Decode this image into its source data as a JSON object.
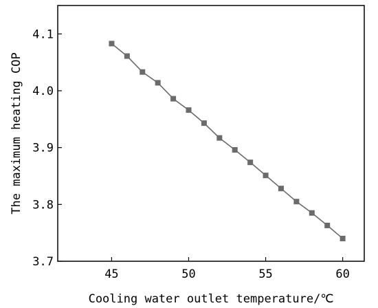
{
  "chart_data": {
    "type": "line",
    "title": "",
    "xlabel": "Cooling water outlet temperature/℃",
    "ylabel": "The maximum heating COP",
    "xlim": [
      41.5,
      61.4
    ],
    "ylim": [
      3.7,
      4.15
    ],
    "xticks": [
      45,
      50,
      55,
      60
    ],
    "yticks": [
      3.7,
      3.8,
      3.9,
      4.0,
      4.1
    ],
    "xtick_labels": [
      "45",
      "50",
      "55",
      "60"
    ],
    "ytick_labels": [
      "3.7",
      "3.8",
      "3.9",
      "4.0",
      "4.1"
    ],
    "grid": false,
    "legend": false,
    "colors": {
      "series": "#6b6b6b",
      "axes": "#000000"
    },
    "series": [
      {
        "marker": "square",
        "x": [
          45,
          46,
          47,
          48,
          49,
          50,
          51,
          52,
          53,
          54,
          55,
          56,
          57,
          58,
          59,
          60
        ],
        "y": [
          4.083,
          4.061,
          4.033,
          4.014,
          3.986,
          3.966,
          3.943,
          3.917,
          3.896,
          3.874,
          3.851,
          3.828,
          3.805,
          3.785,
          3.763,
          3.74
        ]
      }
    ]
  }
}
